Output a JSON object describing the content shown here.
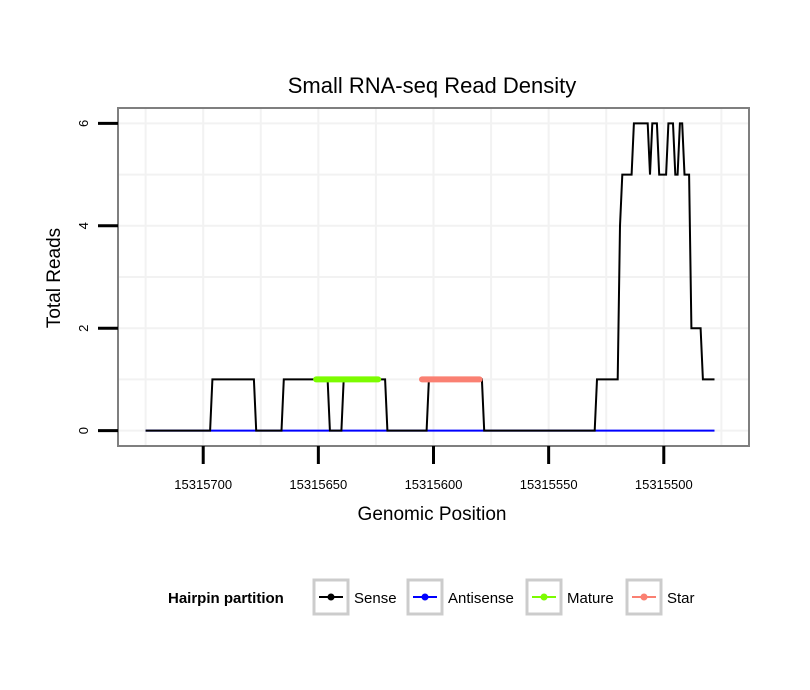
{
  "chart_data": {
    "type": "line",
    "title": "Small RNA-seq Read Density",
    "xlabel": "Genomic Position",
    "ylabel": "Total Reads",
    "x_reversed": true,
    "xlim": [
      15315737,
      15315463
    ],
    "ylim": [
      -0.3,
      6.3
    ],
    "x_ticks": [
      15315700,
      15315650,
      15315600,
      15315550,
      15315500
    ],
    "x_tick_labels": [
      "15315700",
      "15315650",
      "15315600",
      "15315550",
      "15315500"
    ],
    "y_ticks": [
      0,
      2,
      4,
      6
    ],
    "y_tick_labels": [
      "0",
      "2",
      "4",
      "6"
    ],
    "grid": true,
    "legend": {
      "title": "Hairpin partition",
      "placement": "bottom",
      "entries": [
        {
          "label": "Sense",
          "color": "#000000"
        },
        {
          "label": "Antisense",
          "color": "#0000ff"
        },
        {
          "label": "Mature",
          "color": "#7cfc00"
        },
        {
          "label": "Star",
          "color": "#fa8072"
        }
      ]
    },
    "series": [
      {
        "name": "Sense",
        "color": "#000000",
        "x": [
          15315725,
          15315697,
          15315696,
          15315678,
          15315677,
          15315666,
          15315665,
          15315646,
          15315645,
          15315640,
          15315639,
          15315621,
          15315620,
          15315603,
          15315602,
          15315579,
          15315578,
          15315530,
          15315529,
          15315520,
          15315519,
          15315518,
          15315514,
          15315513,
          15315507,
          15315506,
          15315505,
          15315503,
          15315502,
          15315499,
          15315498,
          15315496,
          15315495,
          15315494,
          15315493,
          15315492,
          15315491,
          15315489,
          15315488,
          15315484,
          15315483,
          15315478
        ],
        "y": [
          0,
          0,
          1,
          1,
          0,
          0,
          1,
          1,
          0,
          0,
          1,
          1,
          0,
          0,
          1,
          1,
          0,
          0,
          1,
          1,
          4,
          5,
          5,
          6,
          6,
          5,
          6,
          6,
          5,
          5,
          6,
          6,
          5,
          5,
          6,
          6,
          5,
          5,
          2,
          2,
          1,
          1
        ]
      },
      {
        "name": "Antisense",
        "color": "#0000ff",
        "x": [
          15315725,
          15315478
        ],
        "y": [
          0,
          0
        ]
      },
      {
        "name": "Mature",
        "color": "#7cfc00",
        "x": [
          15315651,
          15315624
        ],
        "y": [
          1,
          1
        ]
      },
      {
        "name": "Star",
        "color": "#fa8072",
        "x": [
          15315605,
          15315580
        ],
        "y": [
          1,
          1
        ]
      }
    ]
  }
}
